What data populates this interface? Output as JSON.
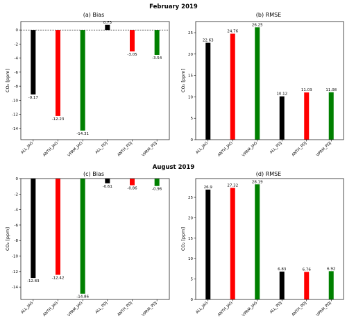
{
  "suptitles": [
    "February 2019",
    "August 2019"
  ],
  "chart_data": [
    {
      "type": "bar",
      "title": "(a) Bias",
      "ylabel": "CO₂ [ppm]",
      "categories": [
        "ALL_JAG",
        "ANTH_JAG",
        "VPRM_JAG",
        "ALL_PDJ",
        "ANTH_PDJ",
        "VPRM_PDJ"
      ],
      "values": [
        -9.17,
        -12.23,
        -14.31,
        0.73,
        -3.05,
        -3.54
      ],
      "value_labels": [
        "-9.17",
        "-12.23",
        "-14.31",
        "0.73",
        "-3.05",
        "-3.54"
      ],
      "colors": [
        "#000000",
        "#ff0000",
        "#008000",
        "#000000",
        "#ff0000",
        "#008000"
      ],
      "ylim": [
        -15.6,
        1.2
      ],
      "yticks": [
        0,
        -2,
        -4,
        -6,
        -8,
        -10,
        -12,
        -14
      ],
      "zero_line": true
    },
    {
      "type": "bar",
      "title": "(b) RMSE",
      "ylabel": "CO₂ [ppm]",
      "categories": [
        "ALL_JAG",
        "ANTH_JAG",
        "VPRM_JAG",
        "ALL_PDJ",
        "ANTH_PDJ",
        "VPRM_PDJ"
      ],
      "values": [
        22.63,
        24.76,
        26.25,
        10.12,
        11.03,
        11.08
      ],
      "value_labels": [
        "22.63",
        "24.76",
        "26.25",
        "10.12",
        "11.03",
        "11.08"
      ],
      "colors": [
        "#000000",
        "#ff0000",
        "#008000",
        "#000000",
        "#ff0000",
        "#008000"
      ],
      "ylim": [
        0,
        27.6
      ],
      "yticks": [
        0,
        5,
        10,
        15,
        20,
        25
      ],
      "zero_line": false
    },
    {
      "type": "bar",
      "title": "(c) Bias",
      "ylabel": "CO₂ [ppm]",
      "categories": [
        "ALL_JAG",
        "ANTH_JAG",
        "VPRM_JAG",
        "ALL_PDJ",
        "ANTH_PDJ",
        "VPRM_PDJ"
      ],
      "values": [
        -12.83,
        -12.42,
        -14.86,
        -0.61,
        -0.86,
        -0.96
      ],
      "value_labels": [
        "-12.83",
        "-12.42",
        "-14.86",
        "-0.61",
        "-0.86",
        "-0.96"
      ],
      "colors": [
        "#000000",
        "#ff0000",
        "#008000",
        "#000000",
        "#ff0000",
        "#008000"
      ],
      "ylim": [
        -15.6,
        0
      ],
      "yticks": [
        0,
        -2,
        -4,
        -6,
        -8,
        -10,
        -12,
        -14
      ],
      "zero_line": false
    },
    {
      "type": "bar",
      "title": "(d) RMSE",
      "ylabel": "CO₂ [ppm]",
      "categories": [
        "ALL_JAG",
        "ANTH_JAG",
        "VPRM_JAG",
        "ALL_PDJ",
        "ANTH_PDJ",
        "VPRM_PDJ"
      ],
      "values": [
        26.9,
        27.32,
        28.19,
        6.83,
        6.76,
        6.92
      ],
      "value_labels": [
        "26.9",
        "27.32",
        "28.19",
        "6.83",
        "6.76",
        "6.92"
      ],
      "colors": [
        "#000000",
        "#ff0000",
        "#008000",
        "#000000",
        "#ff0000",
        "#008000"
      ],
      "ylim": [
        0,
        29.6
      ],
      "yticks": [
        0,
        5,
        10,
        15,
        20,
        25
      ],
      "zero_line": false
    }
  ]
}
